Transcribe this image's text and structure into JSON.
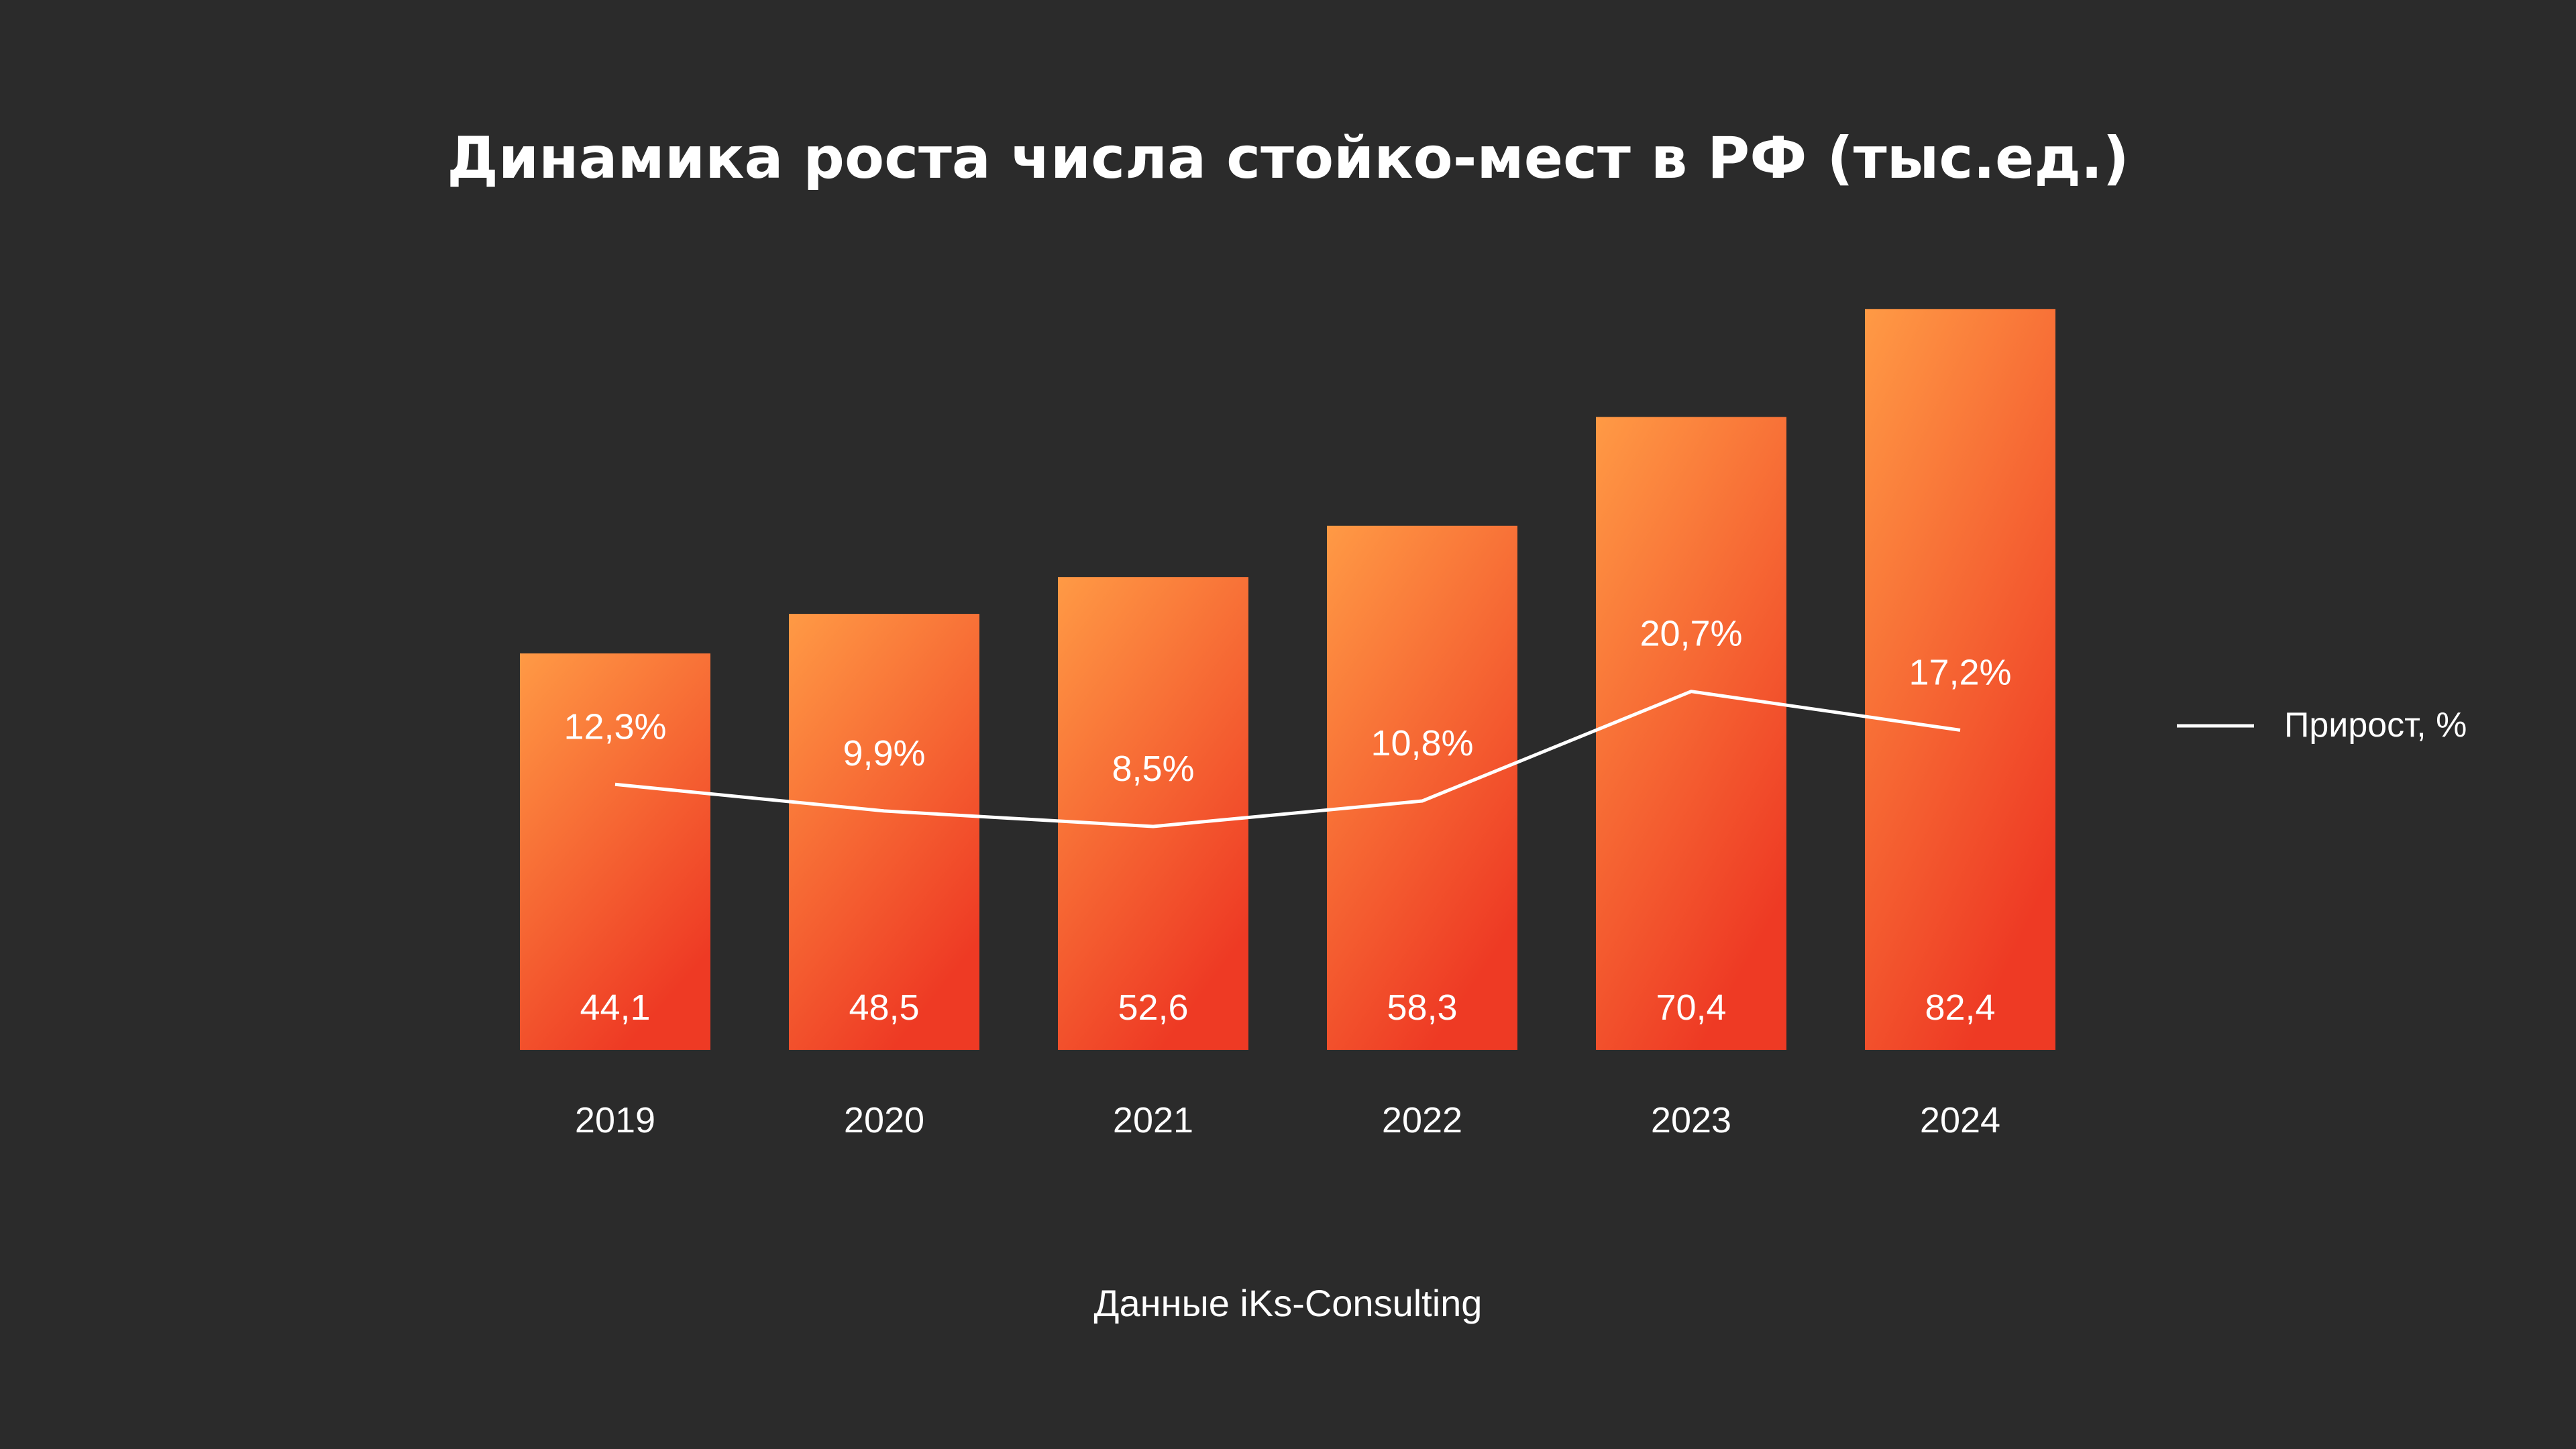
{
  "title": "Динамика роста числа стойко-мест в РФ (тыс.ед.)",
  "source": "Данные iKs-Consulting",
  "colors": {
    "background": "#2b2b2b",
    "bar_top": "#ff9a45",
    "bar_bottom": "#ee3a24",
    "line": "#ffffff",
    "text": "#ffffff"
  },
  "chart_data": {
    "type": "bar",
    "title": "Динамика роста числа стойко-мест в РФ (тыс.ед.)",
    "categories": [
      "2019",
      "2020",
      "2021",
      "2022",
      "2023",
      "2024"
    ],
    "series": [
      {
        "type": "bar",
        "values": [
          44.1,
          48.5,
          52.6,
          58.3,
          70.4,
          82.4
        ],
        "labels": [
          "44,1",
          "48,5",
          "52,6",
          "58,3",
          "70,4",
          "82,4"
        ]
      },
      {
        "type": "line",
        "name": "Прирост, %",
        "values": [
          12.3,
          9.9,
          8.5,
          10.8,
          20.7,
          17.2
        ],
        "labels": [
          "12,3%",
          "9,9%",
          "8,5%",
          "10,8%",
          "20,7%",
          "17,2%"
        ]
      }
    ],
    "legend": {
      "position": "right",
      "entries": [
        "Прирост, %"
      ]
    },
    "grid": false,
    "axes_visible": false
  }
}
